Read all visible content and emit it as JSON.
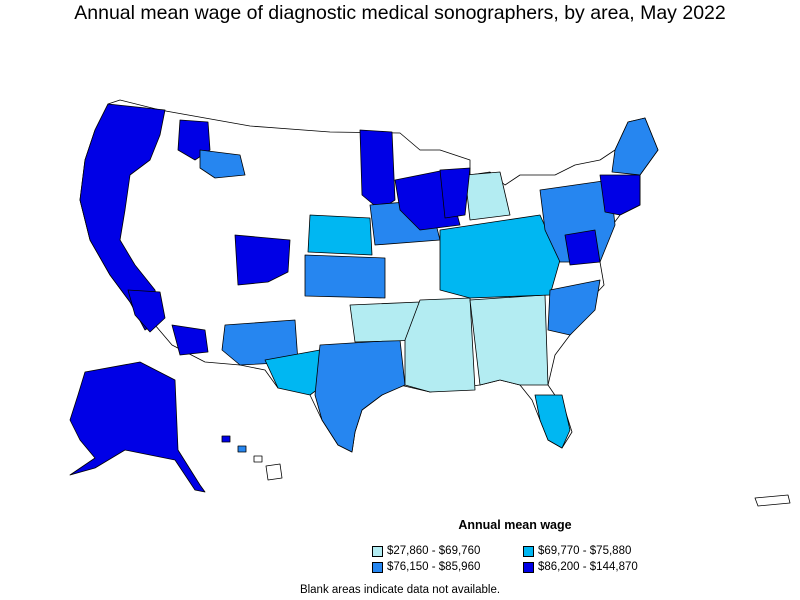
{
  "title": "Annual mean wage of diagnostic medical sonographers, by area, May 2022",
  "legend": {
    "title": "Annual mean wage",
    "items": [
      {
        "label": "$27,860 - $69,760",
        "color": "#b3ecf2"
      },
      {
        "label": "$69,770 - $75,880",
        "color": "#00b7f2"
      },
      {
        "label": "$76,150 - $85,960",
        "color": "#2686f0"
      },
      {
        "label": "$86,200 - $144,870",
        "color": "#0000e6"
      }
    ]
  },
  "note": "Blank areas indicate data not available.",
  "colors": {
    "tier1": "#b3ecf2",
    "tier2": "#00b7f2",
    "tier3": "#2686f0",
    "tier4": "#0000e6",
    "blank": "#ffffff",
    "border": "#000000"
  }
}
